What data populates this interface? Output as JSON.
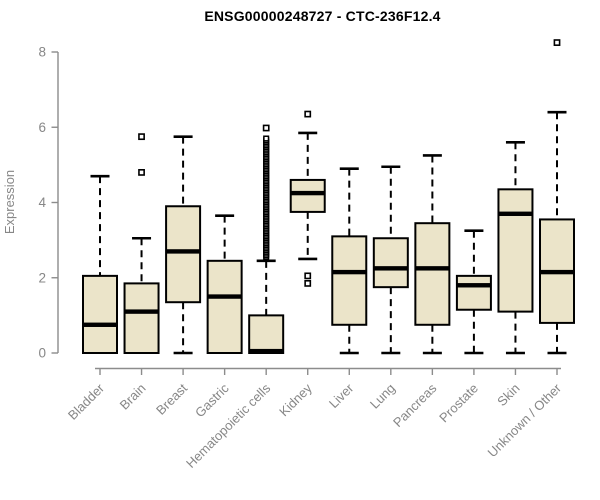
{
  "header": {
    "title": "ENSG00000248727 - CTC-236F12.4"
  },
  "chart_data": {
    "type": "box",
    "title": "ENSG00000248727 - CTC-236F12.4",
    "xlabel": "",
    "ylabel": "Expression",
    "ylim": [
      0,
      8
    ],
    "yticks": [
      0,
      2,
      4,
      6,
      8
    ],
    "grid": false,
    "legend": "none",
    "categories": [
      "Bladder",
      "Brain",
      "Breast",
      "Gastric",
      "Hematopoietic cells",
      "Kidney",
      "Liver",
      "Lung",
      "Pancreas",
      "Prostate",
      "Skin",
      "Unknown / Other"
    ],
    "boxes": [
      {
        "category": "Bladder",
        "whisker_low": 0,
        "q1": 0,
        "median": 0.75,
        "q3": 2.05,
        "whisker_high": 4.7,
        "outliers": []
      },
      {
        "category": "Brain",
        "whisker_low": 0,
        "q1": 0,
        "median": 1.1,
        "q3": 1.85,
        "whisker_high": 3.05,
        "outliers": [
          4.8,
          5.75
        ]
      },
      {
        "category": "Breast",
        "whisker_low": 0,
        "q1": 1.35,
        "median": 2.7,
        "q3": 3.9,
        "whisker_high": 5.75,
        "outliers": []
      },
      {
        "category": "Gastric",
        "whisker_low": 0,
        "q1": 0,
        "median": 1.5,
        "q3": 2.45,
        "whisker_high": 3.65,
        "outliers": []
      },
      {
        "category": "Hematopoietic cells",
        "whisker_low": 0,
        "q1": 0,
        "median": 0.05,
        "q3": 1.0,
        "whisker_high": 2.45,
        "outliers": [
          5.98
        ],
        "outliers_dense": {
          "min": 2.55,
          "max": 5.7,
          "count": 70
        }
      },
      {
        "category": "Kidney",
        "whisker_low": 2.5,
        "q1": 3.75,
        "median": 4.25,
        "q3": 4.6,
        "whisker_high": 5.85,
        "outliers": [
          6.35,
          2.05,
          1.85
        ]
      },
      {
        "category": "Liver",
        "whisker_low": 0,
        "q1": 0.75,
        "median": 2.15,
        "q3": 3.1,
        "whisker_high": 4.9,
        "outliers": []
      },
      {
        "category": "Lung",
        "whisker_low": 0,
        "q1": 1.75,
        "median": 2.25,
        "q3": 3.05,
        "whisker_high": 4.95,
        "outliers": []
      },
      {
        "category": "Pancreas",
        "whisker_low": 0,
        "q1": 0.75,
        "median": 2.25,
        "q3": 3.45,
        "whisker_high": 5.25,
        "outliers": []
      },
      {
        "category": "Prostate",
        "whisker_low": 0,
        "q1": 1.15,
        "median": 1.8,
        "q3": 2.05,
        "whisker_high": 3.25,
        "outliers": []
      },
      {
        "category": "Skin",
        "whisker_low": 0,
        "q1": 1.1,
        "median": 3.7,
        "q3": 4.35,
        "whisker_high": 5.6,
        "outliers": []
      },
      {
        "category": "Unknown / Other",
        "whisker_low": 0,
        "q1": 0.8,
        "median": 2.15,
        "q3": 3.55,
        "whisker_high": 6.4,
        "outliers": [
          8.25
        ]
      }
    ],
    "colors": {
      "box_fill": "#EBE4C9",
      "box_stroke": "#000000",
      "median": "#000000",
      "axis": "#8C8C8C",
      "label": "#878787",
      "title": "#000000",
      "background": "#FFFFFF"
    }
  }
}
